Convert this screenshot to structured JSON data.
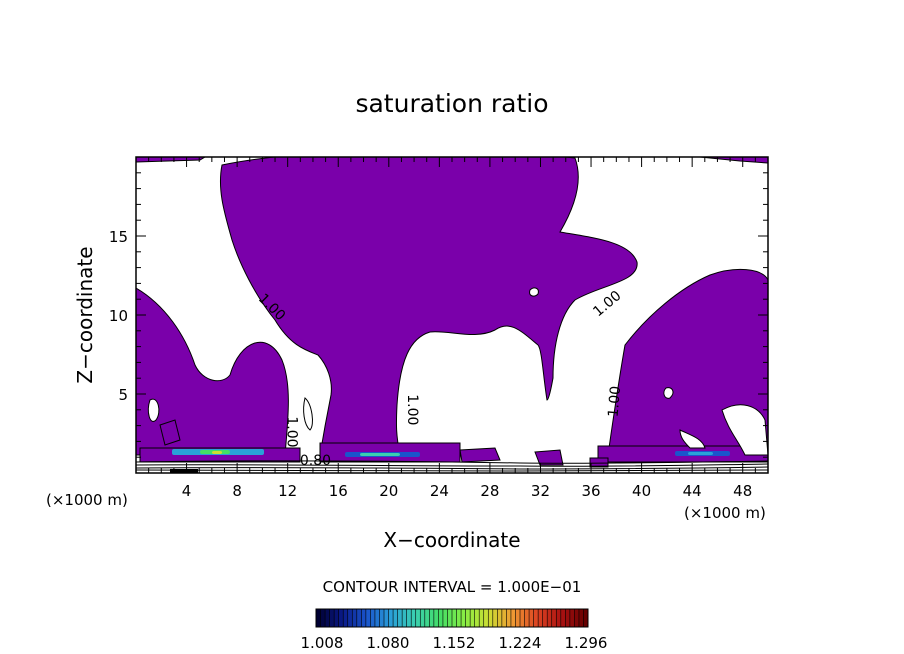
{
  "chart_data": {
    "type": "contour",
    "title": "saturation ratio",
    "xlabel": "X−coordinate",
    "ylabel": "Z−coordinate",
    "x_unit_left": "(×1000 m)",
    "x_unit_right": "(×1000 m)",
    "xlim": [
      0,
      50
    ],
    "ylim": [
      0,
      20
    ],
    "x_ticks": [
      4,
      8,
      12,
      16,
      20,
      24,
      28,
      32,
      36,
      40,
      44,
      48
    ],
    "y_ticks": [
      5,
      10,
      15
    ],
    "fill_color": "#7a00aa",
    "contour_labels": [
      {
        "text": "1.00",
        "x": 10.5,
        "z": 10.3,
        "angle": 45
      },
      {
        "text": "1.00",
        "x": 21.5,
        "z": 4.0,
        "angle": 90
      },
      {
        "text": "1.00",
        "x": 12.0,
        "z": 2.6,
        "angle": 90
      },
      {
        "text": "0.80",
        "x": 14.2,
        "z": 0.5,
        "angle": 0
      },
      {
        "text": "1.00",
        "x": 37.5,
        "z": 10.5,
        "angle": -40
      },
      {
        "text": "1.00",
        "x": 38.2,
        "z": 4.5,
        "angle": -85
      }
    ],
    "contour_interval_label": "CONTOUR INTERVAL = 1.000E−01",
    "colorbar": {
      "labels": [
        "1.008",
        "1.080",
        "1.152",
        "1.224",
        "1.296"
      ],
      "colors": [
        "#000033",
        "#0a1a88",
        "#1a55cc",
        "#2aa0d8",
        "#3ad0b0",
        "#44dd66",
        "#88ee44",
        "#ccdd33",
        "#ee9933",
        "#dd4422",
        "#aa1111",
        "#660000"
      ]
    }
  }
}
